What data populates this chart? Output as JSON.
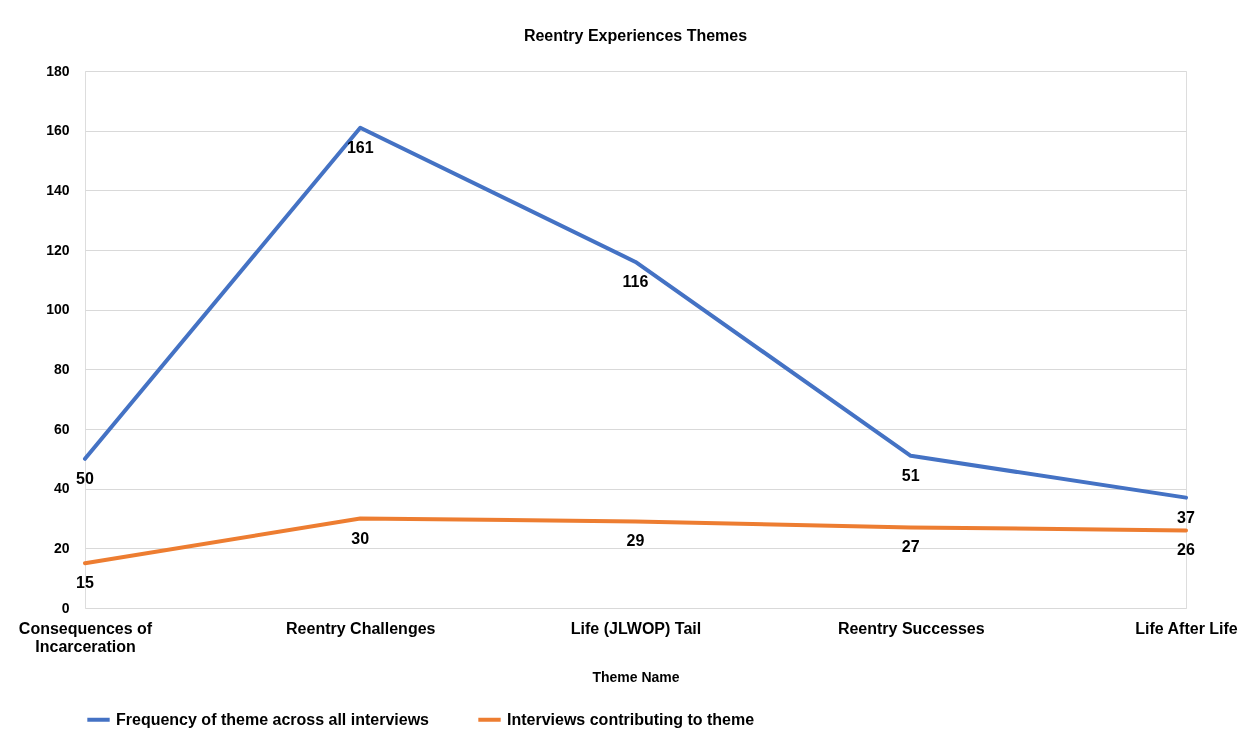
{
  "chart_data": {
    "type": "line",
    "title": "Reentry Experiences Themes",
    "xlabel": "Theme Name",
    "categories": [
      "Consequences of Incarceration",
      "Reentry Challenges",
      "Life (JLWOP) Tail",
      "Reentry Successes",
      "Life After Life"
    ],
    "series": [
      {
        "name": "Frequency of theme across all interviews",
        "color": "#4472c4",
        "values": [
          50,
          161,
          116,
          51,
          37
        ]
      },
      {
        "name": "Interviews contributing to theme",
        "color": "#ed7d31",
        "values": [
          15,
          30,
          29,
          27,
          26
        ]
      }
    ],
    "ylim": [
      0,
      180
    ],
    "yticks": [
      0,
      20,
      40,
      60,
      80,
      100,
      120,
      140,
      160,
      180
    ],
    "grid": "y",
    "legend": "bottom",
    "data_labels": true,
    "line_style": "solid"
  }
}
